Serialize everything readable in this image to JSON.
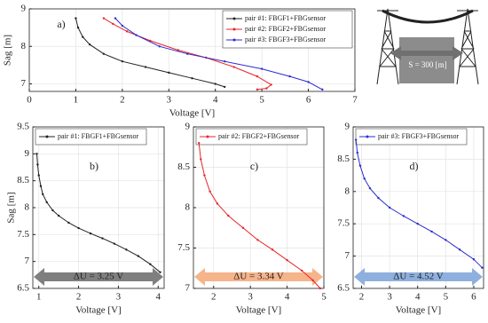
{
  "chart_data": [
    {
      "type": "line",
      "label": "a)",
      "x_label": "Voltage [V]",
      "y_label": "Sag [m]",
      "xlim": [
        0,
        7
      ],
      "xticks": [
        0,
        1,
        2,
        3,
        4,
        5,
        6,
        7
      ],
      "ylim": [
        6.8,
        9
      ],
      "yticks": [
        7,
        8,
        9
      ],
      "grid": true,
      "legend": "upper right",
      "series": [
        {
          "name": "pair #1: FBGF1+FBGsensor",
          "color": "#222222",
          "x": [
            1.0,
            1.05,
            1.15,
            1.3,
            1.6,
            2.0,
            2.5,
            3.0,
            3.5,
            4.0,
            4.2
          ],
          "values": [
            8.75,
            8.5,
            8.25,
            8.05,
            7.8,
            7.6,
            7.45,
            7.3,
            7.15,
            7.0,
            6.92
          ]
        },
        {
          "name": "pair #2: FBGF2+FBGsensor",
          "color": "#e8242a",
          "x": [
            1.6,
            1.8,
            2.1,
            2.6,
            3.2,
            3.8,
            4.4,
            4.9,
            5.2,
            5.1,
            4.9
          ],
          "values": [
            8.75,
            8.6,
            8.4,
            8.15,
            7.9,
            7.7,
            7.45,
            7.2,
            6.98,
            6.88,
            6.85
          ]
        },
        {
          "name": "pair #3: FBGF3+FBGsensor",
          "color": "#2b2bd0",
          "x": [
            1.85,
            2.0,
            2.3,
            2.8,
            3.4,
            4.2,
            5.0,
            5.6,
            6.0,
            6.3
          ],
          "values": [
            8.75,
            8.55,
            8.3,
            8.0,
            7.8,
            7.6,
            7.4,
            7.2,
            7.05,
            6.85
          ]
        }
      ]
    },
    {
      "type": "line",
      "label": "b)",
      "x_label": "Voltage [V]",
      "y_label": "Sag [m]",
      "xlim": [
        0.85,
        4.15
      ],
      "xticks": [
        1,
        2,
        3,
        4
      ],
      "ylim": [
        6.5,
        9.5
      ],
      "yticks": [
        6.5,
        7,
        7.5,
        8,
        8.5,
        9,
        9.5
      ],
      "grid": true,
      "legend": "upper left",
      "annotation": "ΔU = 3.25 V",
      "annotation_color": "#7f7f7f",
      "series": [
        {
          "name": "pair #1: FBGF1+FBGsensor",
          "color": "#222222",
          "x": [
            0.95,
            0.97,
            1.0,
            1.05,
            1.1,
            1.2,
            1.35,
            1.5,
            1.75,
            2.0,
            2.3,
            2.6,
            2.9,
            3.2,
            3.5,
            3.8,
            4.05
          ],
          "values": [
            9.0,
            8.8,
            8.6,
            8.4,
            8.25,
            8.1,
            7.95,
            7.85,
            7.72,
            7.62,
            7.52,
            7.43,
            7.33,
            7.22,
            7.1,
            6.95,
            6.8
          ]
        }
      ]
    },
    {
      "type": "line",
      "label": "c)",
      "x_label": "Voltage [V]",
      "xlim": [
        1.45,
        5.0
      ],
      "xticks": [
        2,
        3,
        4,
        5
      ],
      "ylim": [
        7,
        9
      ],
      "yticks": [
        7,
        7.5,
        8,
        8.5,
        9
      ],
      "grid": true,
      "legend": "upper left",
      "annotation": "ΔU = 3.34 V",
      "annotation_color": "#f5b48a",
      "series": [
        {
          "name": "pair #2: FBGF2+FBGsensor",
          "color": "#e8242a",
          "x": [
            1.6,
            1.65,
            1.75,
            1.9,
            2.1,
            2.4,
            2.8,
            3.2,
            3.6,
            4.0,
            4.4,
            4.7,
            4.9
          ],
          "values": [
            8.8,
            8.6,
            8.4,
            8.2,
            8.05,
            7.9,
            7.75,
            7.6,
            7.48,
            7.35,
            7.22,
            7.1,
            7.0
          ]
        }
      ]
    },
    {
      "type": "line",
      "label": "d)",
      "x_label": "Voltage [V]",
      "xlim": [
        1.7,
        6.35
      ],
      "xticks": [
        2,
        3,
        4,
        5,
        6
      ],
      "ylim": [
        6.5,
        9
      ],
      "yticks": [
        6.5,
        7,
        7.5,
        8,
        8.5,
        9
      ],
      "grid": true,
      "legend": "upper left",
      "annotation": "ΔU = 4.52 V",
      "annotation_color": "#8fb0de",
      "series": [
        {
          "name": "pair #3: FBGF3+FBGsensor",
          "color": "#2b2bd0",
          "x": [
            1.8,
            1.85,
            1.95,
            2.1,
            2.3,
            2.6,
            3.0,
            3.5,
            4.0,
            4.5,
            5.0,
            5.5,
            6.0,
            6.3
          ],
          "values": [
            8.8,
            8.6,
            8.4,
            8.2,
            8.05,
            7.9,
            7.75,
            7.62,
            7.5,
            7.38,
            7.25,
            7.1,
            6.95,
            6.82
          ]
        }
      ]
    }
  ],
  "diagram": {
    "span_label": "S = 300 [m]"
  }
}
